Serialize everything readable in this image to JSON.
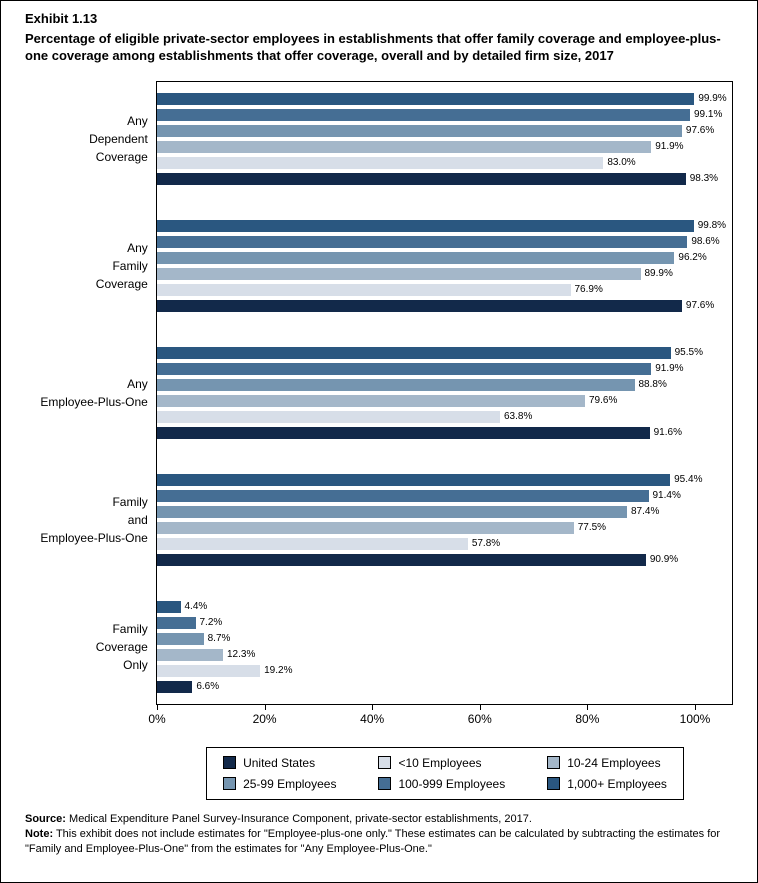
{
  "header": {
    "exhibit": "Exhibit 1.13",
    "title": "Percentage of eligible private-sector employees in establishments that offer family coverage and employee-plus-one coverage among establishments that offer coverage, overall and by detailed firm size, 2017"
  },
  "chart_data": {
    "type": "bar",
    "orientation": "horizontal",
    "title": "Percentage of eligible private-sector employees in establishments that offer family coverage and employee-plus-one coverage among establishments that offer coverage, overall and by detailed firm size, 2017",
    "categories": [
      "Any Dependent Coverage",
      "Any Family Coverage",
      "Any Employee-Plus-One",
      "Family and Employee-Plus-One",
      "Family Coverage Only"
    ],
    "category_lines": [
      [
        "Any",
        "Dependent",
        "Coverage"
      ],
      [
        "Any",
        "Family",
        "Coverage"
      ],
      [
        "Any",
        "Employee-Plus-One"
      ],
      [
        "Family",
        "and",
        "Employee-Plus-One"
      ],
      [
        "Family",
        "Coverage",
        "Only"
      ]
    ],
    "series": [
      {
        "name": "1,000+ Employees",
        "color": "#2a5780",
        "values": [
          99.9,
          99.8,
          95.5,
          95.4,
          4.4
        ]
      },
      {
        "name": "100-999 Employees",
        "color": "#456e94",
        "values": [
          99.1,
          98.6,
          91.9,
          91.4,
          7.2
        ]
      },
      {
        "name": "25-99 Employees",
        "color": "#7595b0",
        "values": [
          97.6,
          96.2,
          88.8,
          87.4,
          8.7
        ]
      },
      {
        "name": "10-24 Employees",
        "color": "#a4b7c9",
        "values": [
          91.9,
          89.9,
          79.6,
          77.5,
          12.3
        ]
      },
      {
        "name": "<10 Employees",
        "color": "#d7dee8",
        "values": [
          83.0,
          76.9,
          63.8,
          57.8,
          19.2
        ]
      },
      {
        "name": "United States",
        "color": "#12294a",
        "values": [
          98.3,
          97.6,
          91.6,
          90.9,
          6.6
        ]
      }
    ],
    "x_ticks": [
      "0%",
      "20%",
      "40%",
      "60%",
      "80%",
      "100%"
    ],
    "xlim": [
      0,
      100
    ],
    "grid": false,
    "legend_position": "bottom",
    "legend": [
      {
        "label": "United States",
        "color": "#12294a"
      },
      {
        "label": "<10 Employees",
        "color": "#d7dee8"
      },
      {
        "label": "10-24 Employees",
        "color": "#a4b7c9"
      },
      {
        "label": "25-99 Employees",
        "color": "#7595b0"
      },
      {
        "label": "100-999 Employees",
        "color": "#456e94"
      },
      {
        "label": "1,000+ Employees",
        "color": "#2a5780"
      }
    ]
  },
  "footer": {
    "source_label": "Source:",
    "source_text": " Medical Expenditure Panel Survey-Insurance Component, private-sector establishments, 2017.",
    "note_label": "Note:",
    "note_text": " This exhibit does not include estimates for \"Employee-plus-one only.\" These estimates can be calculated by subtracting the estimates for \"Family and Employee-Plus-One\" from the estimates for \"Any Employee-Plus-One.\""
  }
}
